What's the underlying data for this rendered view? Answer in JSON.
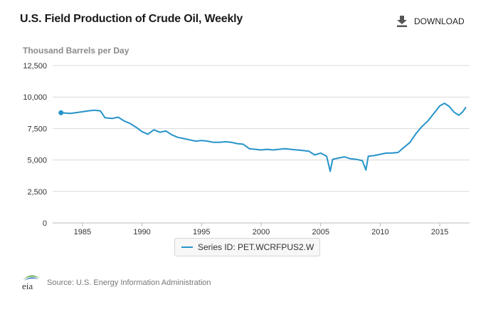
{
  "page": {
    "title": "U.S. Field Production of Crude Oil, Weekly",
    "download_label": "DOWNLOAD",
    "unit_label": "Thousand Barrels per Day",
    "legend_label": "Series ID: PET.WCRFPUS2.W",
    "source": "Source: U.S. Energy Information Administration",
    "logo_text": "eia"
  },
  "colors": {
    "series": "#2693c9",
    "grid": "#d9d9d9",
    "axis_text": "#333333"
  },
  "chart_data": {
    "type": "line",
    "title": "U.S. Field Production of Crude Oil, Weekly",
    "ylabel": "Thousand Barrels per Day",
    "xlabel": "",
    "ylim": [
      0,
      12500
    ],
    "xlim": [
      1982.5,
      2017.5
    ],
    "yticks": [
      0,
      2500,
      5000,
      7500,
      10000,
      12500
    ],
    "ytick_labels": [
      "0",
      "2,500",
      "5,000",
      "7,500",
      "10,000",
      "12,500"
    ],
    "xticks": [
      1985,
      1990,
      1995,
      2000,
      2005,
      2010,
      2015
    ],
    "xtick_labels": [
      "1985",
      "1990",
      "1995",
      "2000",
      "2005",
      "2010",
      "2015"
    ],
    "grid": true,
    "legend": "bottom-center",
    "series": [
      {
        "name": "Series ID: PET.WCRFPUS2.W",
        "x": [
          1983.2,
          1984.0,
          1984.8,
          1985.5,
          1986.0,
          1986.5,
          1986.9,
          1987.5,
          1988.0,
          1988.5,
          1989.0,
          1989.5,
          1990.0,
          1990.5,
          1991.0,
          1991.5,
          1992.0,
          1992.5,
          1993.0,
          1993.5,
          1994.0,
          1994.5,
          1995.0,
          1995.5,
          1996.0,
          1996.5,
          1997.0,
          1997.5,
          1998.0,
          1998.5,
          1999.0,
          1999.5,
          2000.0,
          2000.5,
          2001.0,
          2001.5,
          2002.0,
          2002.5,
          2003.0,
          2003.5,
          2004.0,
          2004.5,
          2005.0,
          2005.5,
          2005.8,
          2006.0,
          2006.5,
          2007.0,
          2007.5,
          2008.0,
          2008.5,
          2008.8,
          2009.0,
          2009.5,
          2010.0,
          2010.5,
          2011.0,
          2011.5,
          2012.0,
          2012.5,
          2013.0,
          2013.5,
          2014.0,
          2014.5,
          2015.0,
          2015.4,
          2015.8,
          2016.2,
          2016.6,
          2016.9,
          2017.2
        ],
        "y": [
          8750,
          8700,
          8800,
          8900,
          8950,
          8900,
          8350,
          8300,
          8400,
          8100,
          7900,
          7600,
          7250,
          7050,
          7400,
          7200,
          7300,
          7000,
          6800,
          6700,
          6600,
          6500,
          6550,
          6500,
          6400,
          6400,
          6450,
          6400,
          6300,
          6250,
          5900,
          5850,
          5800,
          5850,
          5800,
          5850,
          5900,
          5850,
          5800,
          5750,
          5700,
          5400,
          5550,
          5300,
          4100,
          5050,
          5150,
          5250,
          5100,
          5050,
          4950,
          4200,
          5300,
          5350,
          5450,
          5550,
          5550,
          5600,
          6000,
          6400,
          7100,
          7650,
          8100,
          8700,
          9300,
          9500,
          9250,
          8800,
          8550,
          8800,
          9200
        ]
      }
    ]
  }
}
